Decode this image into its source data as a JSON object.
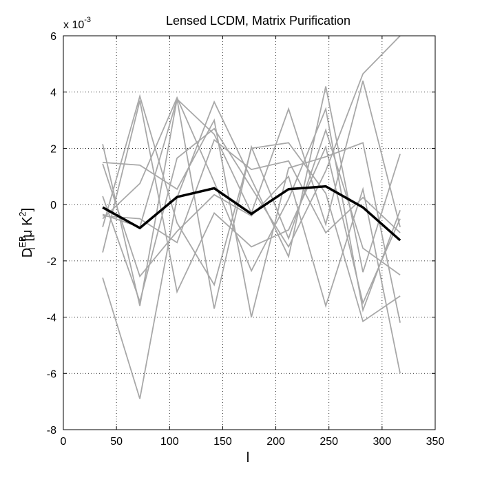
{
  "chart_data": {
    "type": "line",
    "title": "Lensed LCDM, Matrix Purification",
    "xlabel": "l",
    "ylabel": {
      "main": "D",
      "sup": "EB",
      "sub": "l",
      "unit_open": "[μ K",
      "unit_sup": "2",
      "unit_close": "]"
    },
    "y_multiplier": {
      "base": "x 10",
      "exponent": "-3"
    },
    "xlim": [
      0,
      350
    ],
    "ylim": [
      -8,
      6
    ],
    "x_ticks": [
      0,
      50,
      100,
      150,
      200,
      250,
      300,
      350
    ],
    "y_ticks": [
      -8,
      -6,
      -4,
      -2,
      0,
      2,
      4,
      6
    ],
    "grid": true,
    "grid_style": "dotted",
    "x": [
      37,
      72,
      107,
      142,
      177,
      212,
      247,
      282,
      317
    ],
    "mean_series": {
      "color": "#000000",
      "values": [
        -0.1,
        -0.83,
        0.27,
        0.58,
        -0.33,
        0.55,
        0.65,
        -0.1,
        -1.27
      ]
    },
    "realizations_color": "#a8a8a8",
    "realizations": [
      [
        2.15,
        -3.6,
        3.75,
        2.5,
        -0.3,
        3.4,
        -0.7,
        4.4,
        -0.8
      ],
      [
        1.5,
        1.4,
        0.55,
        3.0,
        -4.0,
        1.3,
        1.7,
        2.2,
        -4.2
      ],
      [
        -2.6,
        -6.9,
        0.25,
        3.65,
        0.9,
        -1.85,
        4.2,
        -2.4,
        1.8
      ],
      [
        -0.8,
        3.85,
        -0.65,
        -2.85,
        2.0,
        2.2,
        0.4,
        -4.15,
        -3.25
      ],
      [
        -0.5,
        0.75,
        3.8,
        0.8,
        -2.35,
        0.2,
        3.4,
        -3.75,
        -0.2
      ],
      [
        0.3,
        -3.45,
        1.65,
        2.7,
        0.6,
        -1.5,
        1.2,
        4.65,
        6.0
      ],
      [
        1.45,
        -2.55,
        -0.95,
        0.35,
        -0.4,
        1.0,
        -3.6,
        0.55,
        -6.0
      ],
      [
        -0.4,
        -0.5,
        -1.35,
        2.3,
        1.25,
        1.55,
        -1.0,
        0.25,
        -1.0
      ],
      [
        -1.7,
        3.7,
        -3.1,
        -0.3,
        -1.5,
        -0.9,
        2.05,
        -3.5,
        -0.5
      ],
      [
        -0.35,
        -0.8,
        3.75,
        -3.7,
        2.05,
        -1.2,
        2.65,
        -1.55,
        -2.5
      ]
    ]
  }
}
